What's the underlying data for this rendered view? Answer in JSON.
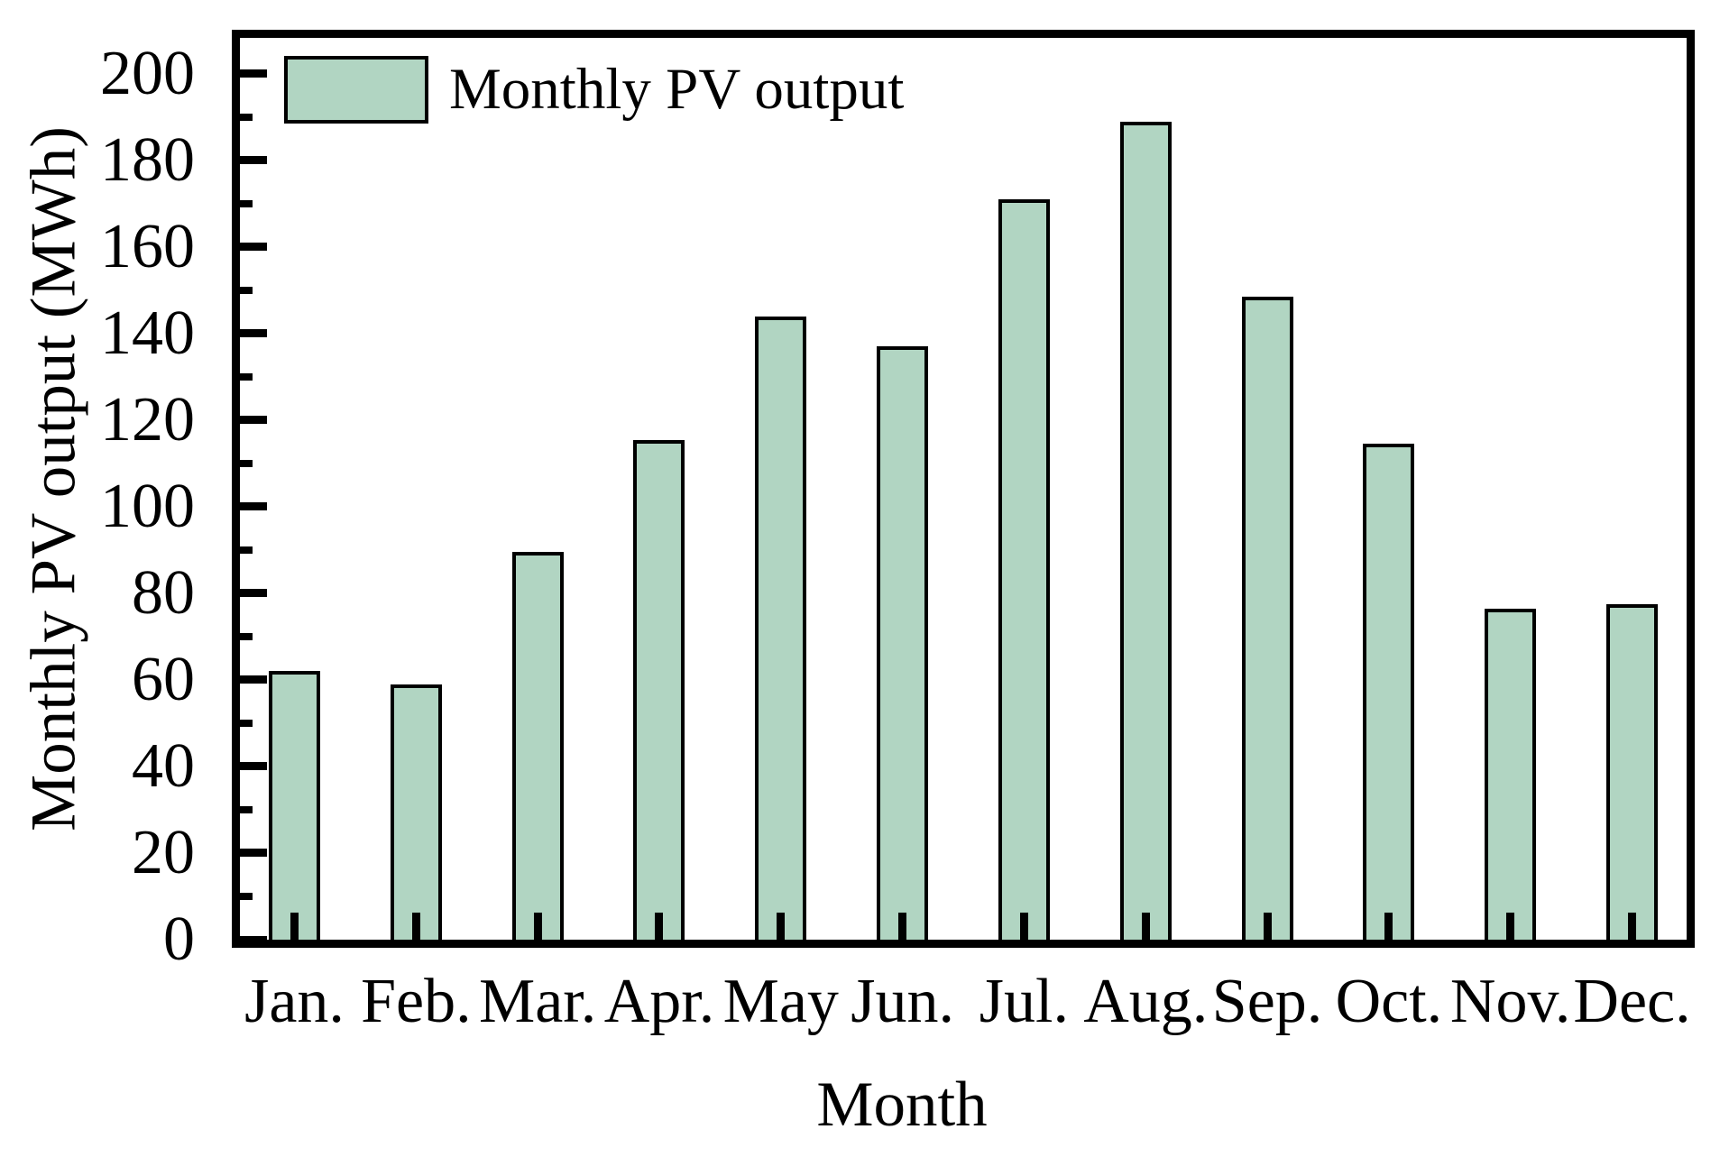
{
  "chart_data": {
    "type": "bar",
    "title": "",
    "xlabel": "Month",
    "ylabel": "Monthly PV output (MWh)",
    "legend_label": "Monthly PV output",
    "legend_position": "top-left",
    "categories": [
      "Jan.",
      "Feb.",
      "Mar.",
      "Apr.",
      "May",
      "Jun.",
      "Jul.",
      "Aug.",
      "Sep.",
      "Oct.",
      "Nov.",
      "Dec."
    ],
    "values": [
      62,
      59,
      89.5,
      115.5,
      144,
      137,
      171,
      189,
      148.5,
      114.5,
      76.5,
      77.5
    ],
    "ylim": [
      0,
      208.3
    ],
    "yticks_major": [
      0,
      20,
      40,
      60,
      80,
      100,
      120,
      140,
      160,
      180,
      200
    ],
    "yticks_minor": [
      10,
      30,
      50,
      70,
      90,
      110,
      130,
      150,
      170,
      190
    ],
    "grid": false,
    "tick_direction": "in",
    "bar_fill": "#b1d5c2",
    "bar_edge": "#000000",
    "text_color": "#000000",
    "background": "#ffffff"
  }
}
